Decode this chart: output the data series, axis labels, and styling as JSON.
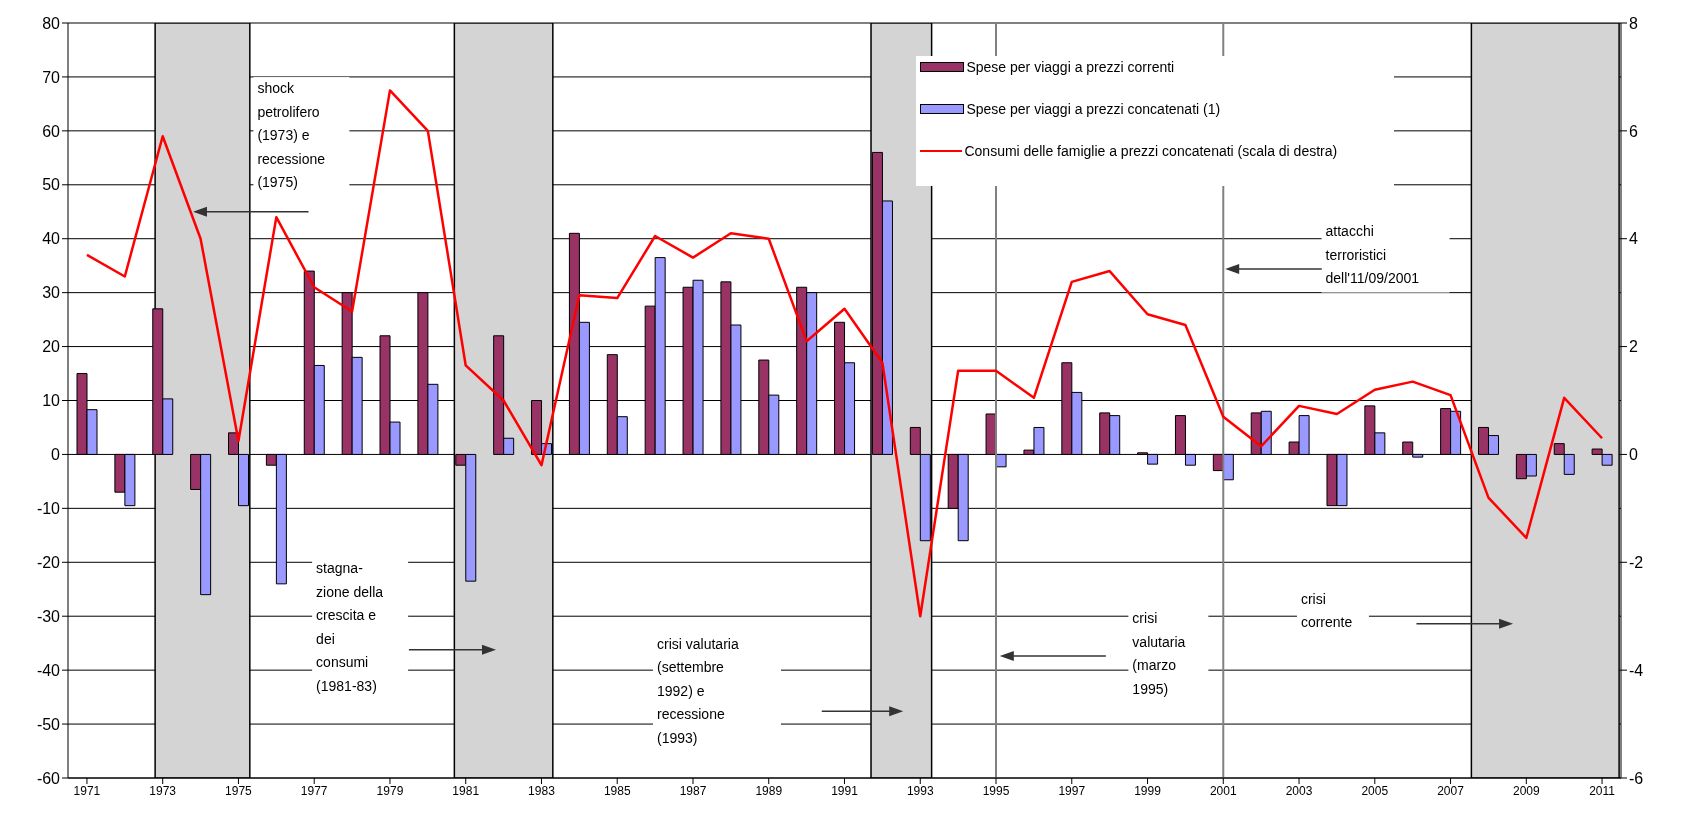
{
  "chart_data": {
    "type": "bar",
    "x": [
      1971,
      1972,
      1973,
      1974,
      1975,
      1976,
      1977,
      1978,
      1979,
      1980,
      1981,
      1982,
      1983,
      1984,
      1985,
      1986,
      1987,
      1988,
      1989,
      1990,
      1991,
      1992,
      1993,
      1994,
      1995,
      1996,
      1997,
      1998,
      1999,
      2000,
      2001,
      2002,
      2003,
      2004,
      2005,
      2006,
      2007,
      2008,
      2009,
      2010,
      2011
    ],
    "series": [
      {
        "name": "Spese per viaggi a prezzi correnti",
        "color": "#993366",
        "values": [
          15,
          -7,
          27,
          -6.5,
          4,
          -2,
          34,
          30,
          22,
          30,
          -2,
          22,
          10,
          41,
          18.5,
          27.5,
          31,
          32,
          17.5,
          31,
          24.5,
          56,
          5,
          -10,
          7.5,
          0.8,
          17,
          7.7,
          0.3,
          7.2,
          -3,
          7.7,
          2.3,
          -9.5,
          9,
          2.3,
          8.5,
          5,
          -4.5,
          2,
          1
        ]
      },
      {
        "name": "Spese per viaggi a prezzi concatenati (1)",
        "color": "#9999ff",
        "values": [
          8.3,
          -9.5,
          10.3,
          -26,
          -9.5,
          -24,
          16.5,
          18,
          6,
          13,
          -23.5,
          3,
          2,
          24.5,
          7,
          36.5,
          32.3,
          24,
          11,
          30,
          17,
          47,
          -16,
          -16,
          -2.3,
          5,
          11.5,
          7.2,
          -1.8,
          -2,
          -4.7,
          8,
          7.2,
          -9.5,
          4,
          -0.5,
          8,
          3.5,
          -4,
          -3.7,
          -2
        ]
      },
      {
        "name": "Consumi delle famiglie a prezzi concatenati (scala di destra)",
        "type": "line",
        "axis": "y2",
        "color": "#ff0000",
        "values": [
          3.7,
          3.3,
          5.9,
          4.0,
          0.25,
          4.4,
          3.1,
          2.65,
          6.75,
          6.0,
          1.65,
          1.0,
          -0.2,
          2.95,
          2.9,
          4.05,
          3.65,
          4.1,
          4.0,
          2.1,
          2.7,
          1.7,
          -3.0,
          1.55,
          1.55,
          1.05,
          3.2,
          3.4,
          2.6,
          2.4,
          0.7,
          0.15,
          0.9,
          0.75,
          1.2,
          1.35,
          1.1,
          -0.8,
          -1.55,
          1.05,
          0.3
        ]
      }
    ],
    "xlim": [
      1970.5,
      2011.5
    ],
    "xticks": [
      1971,
      1973,
      1975,
      1977,
      1979,
      1981,
      1983,
      1985,
      1987,
      1989,
      1991,
      1993,
      1995,
      1997,
      1999,
      2001,
      2003,
      2005,
      2007,
      2009,
      2011
    ],
    "ylim": [
      -60,
      80
    ],
    "yticks": [
      -60,
      -50,
      -40,
      -30,
      -20,
      -10,
      0,
      10,
      20,
      30,
      40,
      50,
      60,
      70,
      80
    ],
    "y2lim": [
      -6,
      8
    ],
    "y2ticks": [
      -6,
      -4,
      -2,
      0,
      2,
      4,
      6,
      8
    ],
    "bands": [
      {
        "axis": "x",
        "from": 1972.8,
        "to": 1975.3,
        "color": "#d4d4d4"
      },
      {
        "axis": "x",
        "from": 1980.7,
        "to": 1983.3,
        "color": "#d4d4d4"
      },
      {
        "axis": "x",
        "from": 1991.7,
        "to": 1993.3,
        "color": "#d4d4d4"
      },
      {
        "axis": "x",
        "from": 2007.55,
        "to": 2011.45,
        "color": "#d4d4d4"
      }
    ],
    "ref_lines": [
      {
        "axis": "x",
        "value": 1995,
        "color": "#808080"
      },
      {
        "axis": "x",
        "value": 2001,
        "color": "#808080"
      }
    ],
    "annotations": [
      "shock\npetrolifero\n(1973) e\nrecessione\n(1975)",
      "stagna-\nzione della\ncrescita e\ndei\nconsumi\n(1981-83)",
      "crisi valutaria\n(settembre\n1992) e\nrecessione\n(1993)",
      "crisi\nvalutaria\n(marzo\n1995)",
      "attacchi\nterroristici\ndell'11/09/2001",
      "crisi\ncorrente"
    ],
    "grid": "y",
    "legend": "top right",
    "marker": "none",
    "line_style": "solid"
  }
}
